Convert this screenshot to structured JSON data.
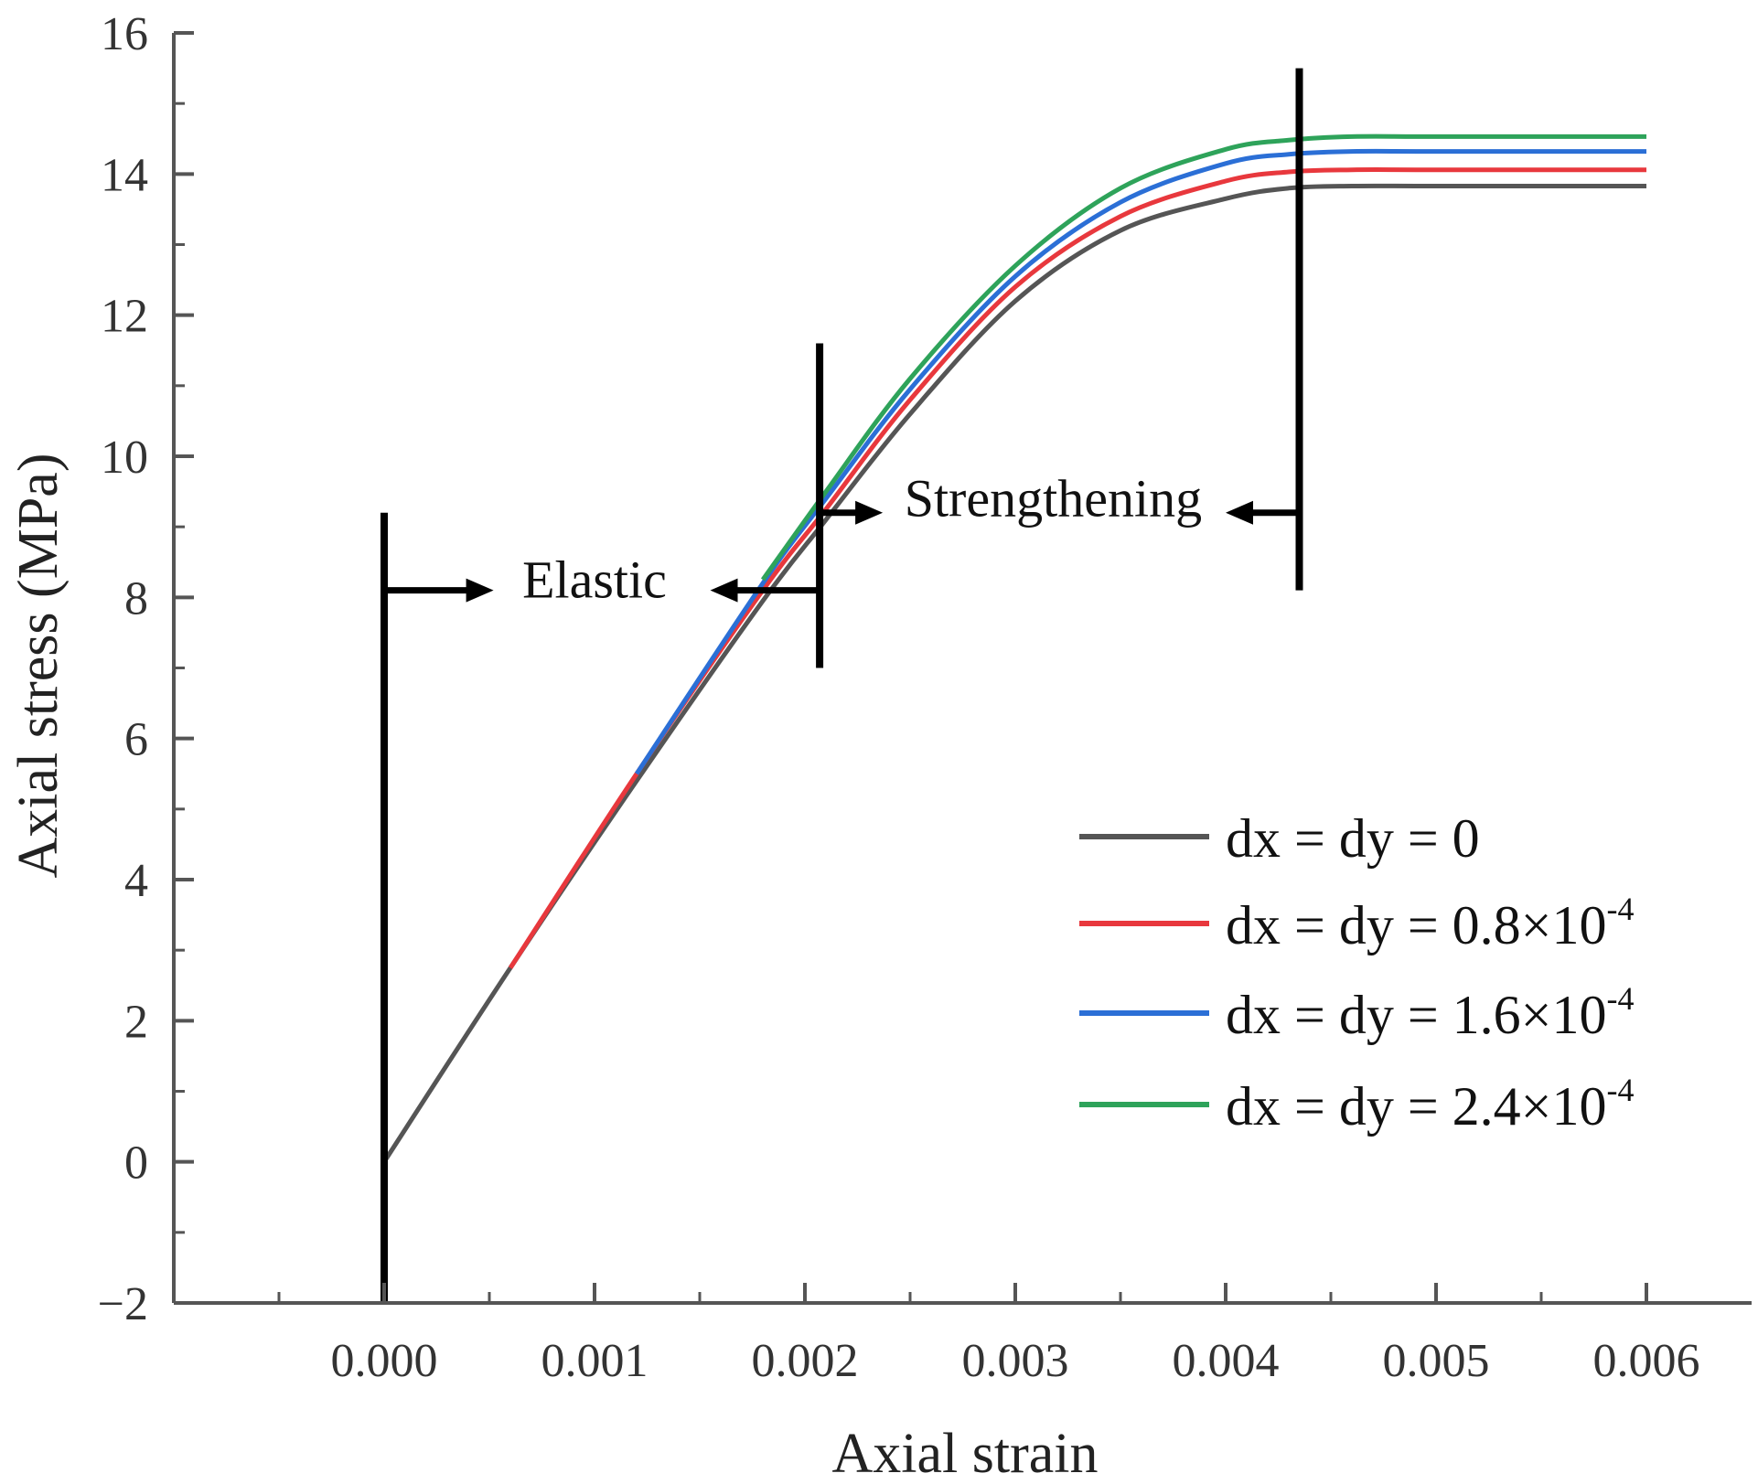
{
  "chart_data": {
    "type": "line",
    "title": "",
    "xlabel": "Axial strain",
    "ylabel": "Axial stress (MPa)",
    "xlim": [
      -0.001,
      0.0065
    ],
    "ylim": [
      -2,
      16
    ],
    "xticks": [
      0.0,
      0.001,
      0.002,
      0.003,
      0.004,
      0.005,
      0.006
    ],
    "xtick_labels": [
      "0.000",
      "0.001",
      "0.002",
      "0.003",
      "0.004",
      "0.005",
      "0.006"
    ],
    "yticks": [
      -2,
      0,
      2,
      4,
      6,
      8,
      10,
      12,
      14,
      16
    ],
    "ytick_labels": [
      "−2",
      "0",
      "2",
      "4",
      "6",
      "8",
      "10",
      "12",
      "14",
      "16"
    ],
    "grid": false,
    "legend_position": "bottom-right",
    "series": [
      {
        "name": "dx = dy = 0",
        "legend_text": "dx = dy = 0",
        "legend_exponent": "",
        "color": "#555555",
        "x": [
          0.0,
          0.0006,
          0.0012,
          0.0018,
          0.0021,
          0.0025,
          0.003,
          0.0035,
          0.004,
          0.0043,
          0.0046,
          0.005,
          0.006
        ],
        "y": [
          0.0,
          2.75,
          5.4,
          7.95,
          9.1,
          10.6,
          12.2,
          13.2,
          13.65,
          13.8,
          13.83,
          13.83,
          13.83
        ]
      },
      {
        "name": "dx = dy = 0.8×10-4",
        "legend_text": "dx = dy = 0.8×10",
        "legend_exponent": "-4",
        "color": "#e8383d",
        "x": [
          0.0006,
          0.0012,
          0.0018,
          0.0021,
          0.0025,
          0.003,
          0.0035,
          0.004,
          0.0043,
          0.0046,
          0.005,
          0.006
        ],
        "y": [
          2.75,
          5.5,
          8.1,
          9.25,
          10.8,
          12.4,
          13.4,
          13.9,
          14.03,
          14.06,
          14.06,
          14.06
        ]
      },
      {
        "name": "dx = dy = 1.6×10-4",
        "legend_text": "dx = dy = 1.6×10",
        "legend_exponent": "-4",
        "color": "#2b6fd6",
        "x": [
          0.0012,
          0.0018,
          0.0021,
          0.0025,
          0.003,
          0.0035,
          0.004,
          0.0043,
          0.0046,
          0.005,
          0.006
        ],
        "y": [
          5.5,
          8.2,
          9.4,
          10.95,
          12.55,
          13.6,
          14.15,
          14.28,
          14.32,
          14.32,
          14.32
        ]
      },
      {
        "name": "dx = dy = 2.4×10-4",
        "legend_text": "dx = dy = 2.4×10",
        "legend_exponent": "-4",
        "color": "#2ea35a",
        "x": [
          0.0018,
          0.0021,
          0.0025,
          0.003,
          0.0035,
          0.004,
          0.0043,
          0.0046,
          0.005,
          0.006
        ],
        "y": [
          8.25,
          9.5,
          11.1,
          12.7,
          13.8,
          14.35,
          14.48,
          14.53,
          14.53,
          14.53
        ]
      }
    ],
    "annotations": [
      {
        "text": "Elastic",
        "x": 0.001,
        "y": 8.0
      },
      {
        "text": "Strengthening",
        "x": 0.00318,
        "y": 9.15
      }
    ],
    "boundaries": [
      {
        "x": 0.0,
        "y_from": -2,
        "y_to": 9.2
      },
      {
        "x": 0.00207,
        "y_from": 7.0,
        "y_to": 11.6
      },
      {
        "x": 0.00435,
        "y_from": 8.1,
        "y_to": 15.5
      }
    ],
    "range_arrows": [
      {
        "from_x": 0.0,
        "to_x": 0.00052,
        "y": 8.1
      },
      {
        "from_x": 0.00207,
        "to_x": 0.00155,
        "y": 8.1
      },
      {
        "from_x": 0.00207,
        "to_x": 0.00237,
        "y": 9.2
      },
      {
        "from_x": 0.00435,
        "to_x": 0.004,
        "y": 9.2
      }
    ]
  }
}
